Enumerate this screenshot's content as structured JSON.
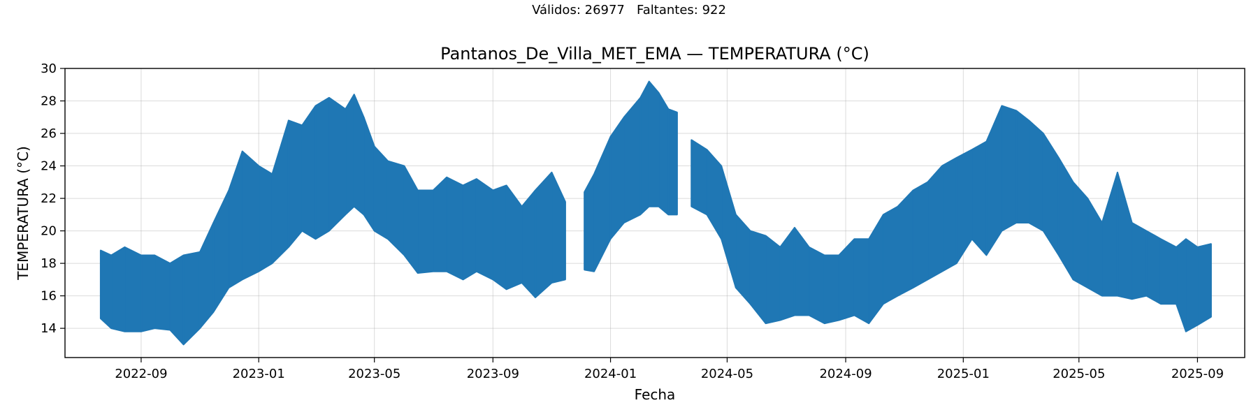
{
  "header": {
    "counts_text": "Válidos: 26977   Faltantes: 922"
  },
  "chart_data": {
    "type": "line",
    "title": "Pantanos_De_Villa_MET_EMA — TEMPERATURA (°C)",
    "xlabel": "Fecha",
    "ylabel": "TEMPERATURA (°C)",
    "xlim": [
      "2022-06-14",
      "2025-10-20"
    ],
    "ylim": [
      12.2,
      30
    ],
    "x_ticks": [
      "2022-09",
      "2023-01",
      "2023-05",
      "2023-09",
      "2024-01",
      "2024-05",
      "2024-09",
      "2025-01",
      "2025-05",
      "2025-09"
    ],
    "y_ticks": [
      14,
      16,
      18,
      20,
      22,
      24,
      26,
      28,
      30
    ],
    "grid": true,
    "line_color": "#1f77b4",
    "series": [
      {
        "envelope_columns": [
          "date",
          "min",
          "max"
        ],
        "segments": [
          [
            [
              "2022-07-21",
              14.6,
              18.8
            ],
            [
              "2022-08-01",
              14.0,
              18.5
            ],
            [
              "2022-08-15",
              13.8,
              19.0
            ],
            [
              "2022-09-01",
              13.8,
              18.5
            ],
            [
              "2022-09-15",
              14.0,
              18.5
            ],
            [
              "2022-10-01",
              13.9,
              18.0
            ],
            [
              "2022-10-15",
              13.0,
              18.5
            ],
            [
              "2022-11-01",
              14.0,
              18.7
            ],
            [
              "2022-11-15",
              15.0,
              20.5
            ],
            [
              "2022-12-01",
              16.5,
              22.5
            ],
            [
              "2022-12-15",
              17.0,
              24.9
            ],
            [
              "2023-01-01",
              17.5,
              24.0
            ],
            [
              "2023-01-15",
              18.0,
              23.5
            ],
            [
              "2023-02-01",
              19.0,
              26.8
            ],
            [
              "2023-02-15",
              20.0,
              26.5
            ],
            [
              "2023-03-01",
              19.5,
              27.7
            ],
            [
              "2023-03-15",
              20.0,
              28.2
            ],
            [
              "2023-04-01",
              21.0,
              27.5
            ],
            [
              "2023-04-10",
              21.5,
              28.4
            ],
            [
              "2023-04-20",
              21.0,
              27.0
            ],
            [
              "2023-05-01",
              20.0,
              25.2
            ],
            [
              "2023-05-15",
              19.5,
              24.3
            ],
            [
              "2023-06-01",
              18.5,
              24.0
            ],
            [
              "2023-06-15",
              17.4,
              22.5
            ],
            [
              "2023-07-01",
              17.5,
              22.5
            ],
            [
              "2023-07-15",
              17.5,
              23.3
            ],
            [
              "2023-08-01",
              17.0,
              22.8
            ],
            [
              "2023-08-15",
              17.5,
              23.2
            ],
            [
              "2023-09-01",
              17.0,
              22.5
            ],
            [
              "2023-09-15",
              16.4,
              22.8
            ],
            [
              "2023-10-01",
              16.8,
              21.5
            ],
            [
              "2023-10-15",
              15.9,
              22.5
            ],
            [
              "2023-11-01",
              16.8,
              23.6
            ],
            [
              "2023-11-15",
              17.0,
              21.8
            ]
          ],
          [
            [
              "2023-12-05",
              17.6,
              22.4
            ],
            [
              "2023-12-15",
              17.5,
              23.5
            ],
            [
              "2024-01-01",
              19.5,
              25.8
            ],
            [
              "2024-01-15",
              20.5,
              27.0
            ],
            [
              "2024-02-01",
              21.0,
              28.2
            ],
            [
              "2024-02-10",
              21.5,
              29.2
            ],
            [
              "2024-02-20",
              21.5,
              28.5
            ],
            [
              "2024-03-01",
              21.0,
              27.5
            ],
            [
              "2024-03-10",
              21.0,
              27.3
            ]
          ],
          [
            [
              "2024-03-25",
              21.5,
              25.6
            ],
            [
              "2024-04-10",
              21.0,
              25.0
            ],
            [
              "2024-04-25",
              19.5,
              24.0
            ],
            [
              "2024-05-10",
              16.5,
              21.0
            ],
            [
              "2024-05-25",
              15.5,
              20.0
            ],
            [
              "2024-06-10",
              14.3,
              19.7
            ],
            [
              "2024-06-25",
              14.5,
              19.0
            ],
            [
              "2024-07-10",
              14.8,
              20.2
            ],
            [
              "2024-07-25",
              14.8,
              19.0
            ],
            [
              "2024-08-10",
              14.3,
              18.5
            ],
            [
              "2024-08-25",
              14.5,
              18.5
            ],
            [
              "2024-09-10",
              14.8,
              19.5
            ],
            [
              "2024-09-25",
              14.3,
              19.5
            ],
            [
              "2024-10-10",
              15.5,
              21.0
            ],
            [
              "2024-10-25",
              16.0,
              21.5
            ],
            [
              "2024-11-10",
              16.5,
              22.5
            ],
            [
              "2024-11-25",
              17.0,
              23.0
            ],
            [
              "2024-12-10",
              17.5,
              24.0
            ],
            [
              "2024-12-25",
              18.0,
              24.5
            ],
            [
              "2025-01-10",
              19.5,
              25.0
            ],
            [
              "2025-01-25",
              18.5,
              25.5
            ],
            [
              "2025-02-10",
              20.0,
              27.7
            ],
            [
              "2025-02-25",
              20.5,
              27.4
            ],
            [
              "2025-03-10",
              20.5,
              26.8
            ],
            [
              "2025-03-25",
              20.0,
              26.0
            ],
            [
              "2025-04-10",
              18.5,
              24.5
            ],
            [
              "2025-04-25",
              17.0,
              23.0
            ],
            [
              "2025-05-10",
              16.5,
              22.0
            ],
            [
              "2025-05-25",
              16.0,
              20.5
            ],
            [
              "2025-06-10",
              16.0,
              23.6
            ],
            [
              "2025-06-25",
              15.8,
              20.5
            ],
            [
              "2025-07-10",
              16.0,
              20.0
            ],
            [
              "2025-07-25",
              15.5,
              19.5
            ],
            [
              "2025-08-10",
              15.5,
              19.0
            ],
            [
              "2025-08-20",
              13.8,
              19.5
            ],
            [
              "2025-09-01",
              14.2,
              19.0
            ],
            [
              "2025-09-15",
              14.7,
              19.2
            ]
          ]
        ]
      }
    ]
  }
}
